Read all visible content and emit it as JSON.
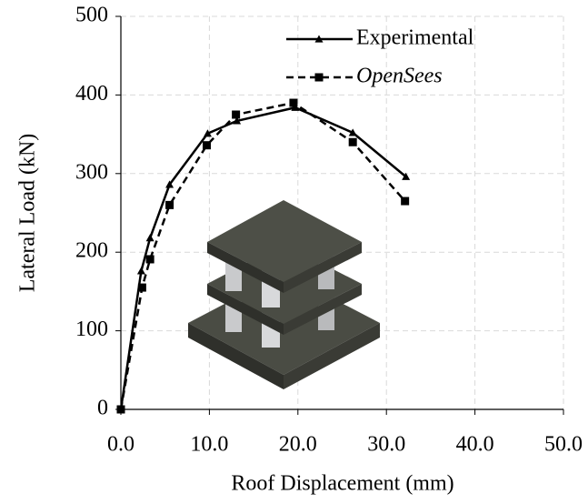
{
  "chart_data": {
    "type": "line",
    "xlabel": "Roof Displacement (mm)",
    "ylabel": "Lateral Load (kN)",
    "xlim": [
      0,
      50
    ],
    "ylim": [
      0,
      500
    ],
    "xticks": [
      {
        "value": 0,
        "label": "0.0"
      },
      {
        "value": 10,
        "label": "10.0"
      },
      {
        "value": 20,
        "label": "20.0"
      },
      {
        "value": 30,
        "label": "30.0"
      },
      {
        "value": 40,
        "label": "40.0"
      },
      {
        "value": 50,
        "label": "50.0"
      }
    ],
    "yticks": [
      0,
      100,
      200,
      300,
      400,
      500
    ],
    "grid": true,
    "legend": "upper right",
    "series": [
      {
        "name": "Experimental",
        "color": "#000000",
        "marker": "triangle",
        "dashed": false,
        "x": [
          0,
          2.3,
          3.3,
          5.5,
          9.8,
          13.1,
          19.7,
          26.2,
          32.2
        ],
        "values": [
          0,
          176,
          218,
          286,
          351,
          367,
          384,
          352,
          296
        ]
      },
      {
        "name": "OpenSees",
        "color": "#000000",
        "marker": "square",
        "dashed": true,
        "x": [
          0,
          2.4,
          3.3,
          5.5,
          9.7,
          13.0,
          19.5,
          26.2,
          32.1
        ],
        "values": [
          0,
          155,
          191,
          260,
          336,
          375,
          390,
          340,
          265
        ]
      }
    ]
  }
}
